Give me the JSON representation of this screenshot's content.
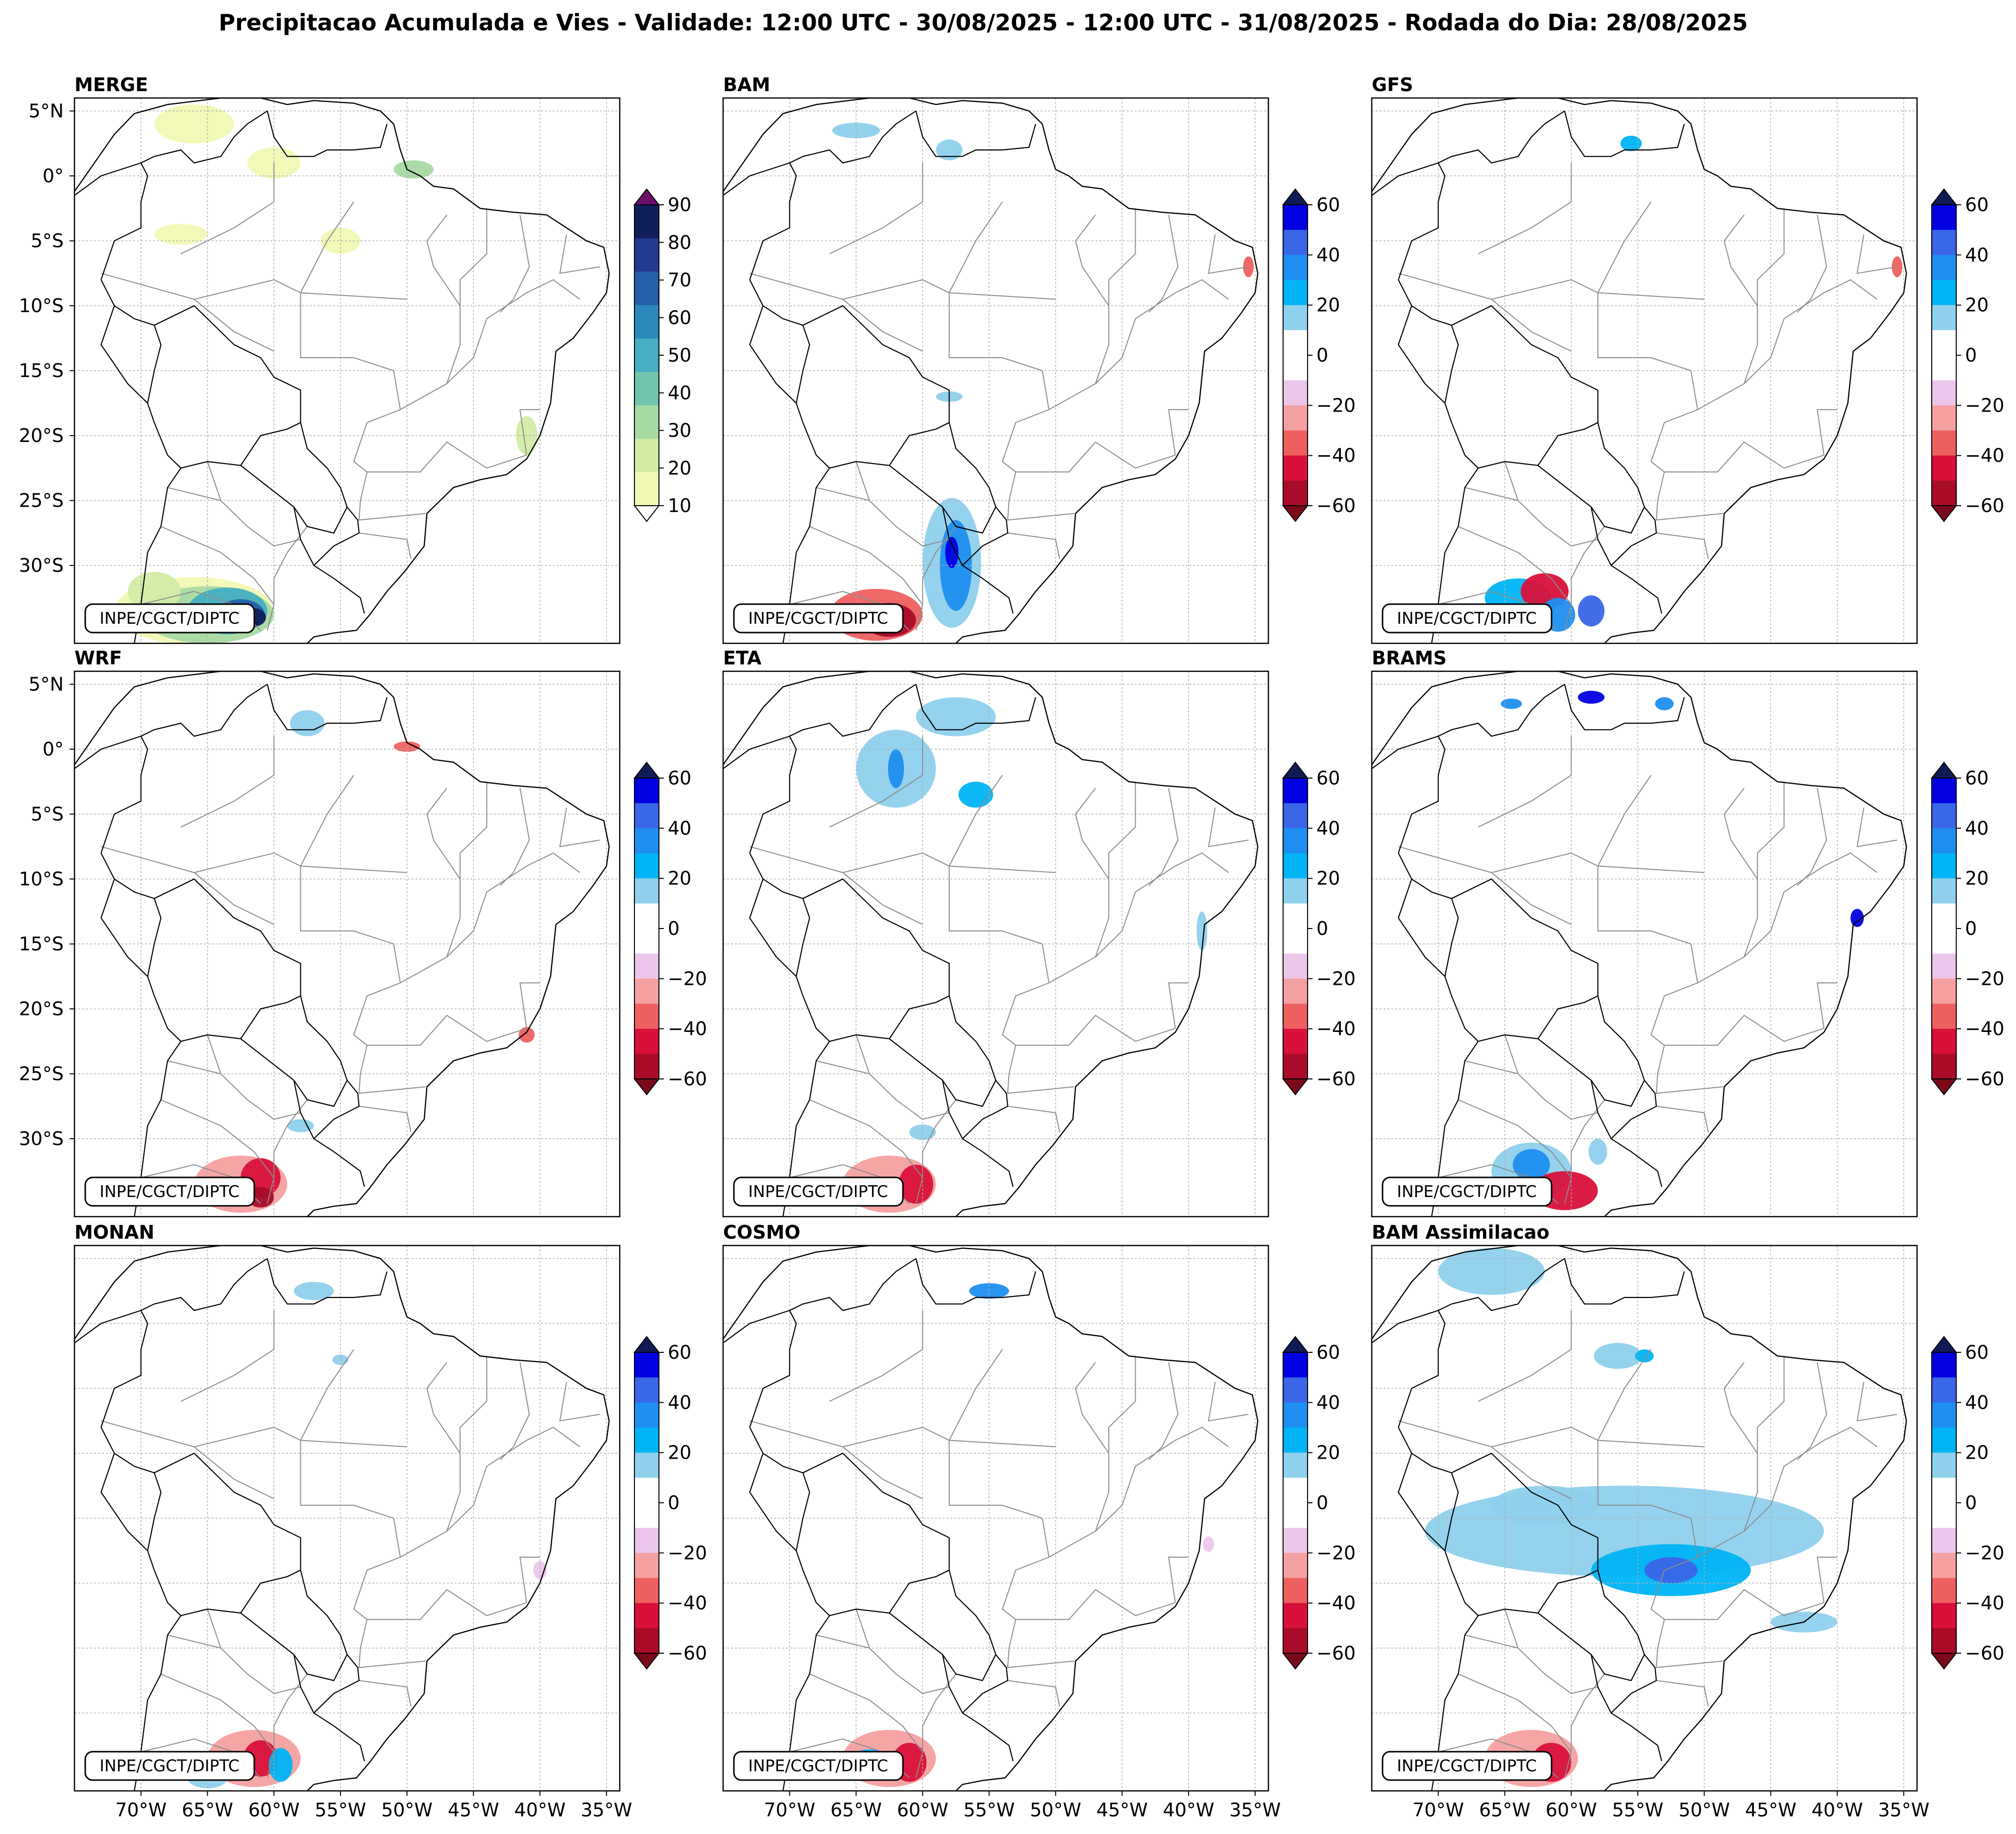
{
  "figure": {
    "title": "Precipitacao Acumulada e Vies - Validade: 12:00 UTC - 30/08/2025 - 12:00 UTC - 31/08/2025 - Rodada do Dia: 28/08/2025"
  },
  "credit": "INPE/CGCT/DIPTC",
  "axes": {
    "lon_range": [
      -75,
      -34
    ],
    "lat_range": [
      -36,
      6
    ],
    "lon_ticks": [
      {
        "value": -70,
        "label": "70°W"
      },
      {
        "value": -65,
        "label": "65°W"
      },
      {
        "value": -60,
        "label": "60°W"
      },
      {
        "value": -55,
        "label": "55°W"
      },
      {
        "value": -50,
        "label": "50°W"
      },
      {
        "value": -45,
        "label": "45°W"
      },
      {
        "value": -40,
        "label": "40°W"
      },
      {
        "value": -35,
        "label": "35°W"
      }
    ],
    "lat_ticks": [
      {
        "value": 5,
        "label": "5°N"
      },
      {
        "value": 0,
        "label": "0°"
      },
      {
        "value": -5,
        "label": "5°S"
      },
      {
        "value": -10,
        "label": "10°S"
      },
      {
        "value": -15,
        "label": "15°S"
      },
      {
        "value": -20,
        "label": "20°S"
      },
      {
        "value": -25,
        "label": "25°S"
      },
      {
        "value": -30,
        "label": "30°S"
      }
    ]
  },
  "colorbars": {
    "precip": {
      "ticks": [
        "10",
        "20",
        "30",
        "40",
        "50",
        "60",
        "70",
        "80",
        "90"
      ],
      "colors": [
        "#f1f8b4",
        "#d2eca6",
        "#a6daa3",
        "#71c4ae",
        "#45aec0",
        "#2a88bb",
        "#2460a8",
        "#223b90",
        "#101f5a"
      ],
      "under_color": "#ffffff",
      "over_color": "#6b0f6b"
    },
    "bias": {
      "ticks": [
        "60",
        "40",
        "20",
        "0",
        "−20",
        "−40",
        "−60"
      ],
      "colors": [
        "#0000e0",
        "#3a66e8",
        "#1e8ff0",
        "#00b4f5",
        "#8fd0ec",
        "#ffffff",
        "#ffffff",
        "#ecc6ea",
        "#f5a0a0",
        "#ee6060",
        "#d8103a",
        "#a80c28"
      ],
      "over_color": "#101a55",
      "under_color": "#7a0a1a"
    }
  },
  "panels": [
    {
      "title": "MERGE",
      "type": "precip"
    },
    {
      "title": "BAM",
      "type": "bias"
    },
    {
      "title": "GFS",
      "type": "bias"
    },
    {
      "title": "WRF",
      "type": "bias"
    },
    {
      "title": "ETA",
      "type": "bias"
    },
    {
      "title": "BRAMS",
      "type": "bias"
    },
    {
      "title": "MONAN",
      "type": "bias"
    },
    {
      "title": "COSMO",
      "type": "bias"
    },
    {
      "title": "BAM Assimilacao",
      "type": "bias"
    }
  ]
}
